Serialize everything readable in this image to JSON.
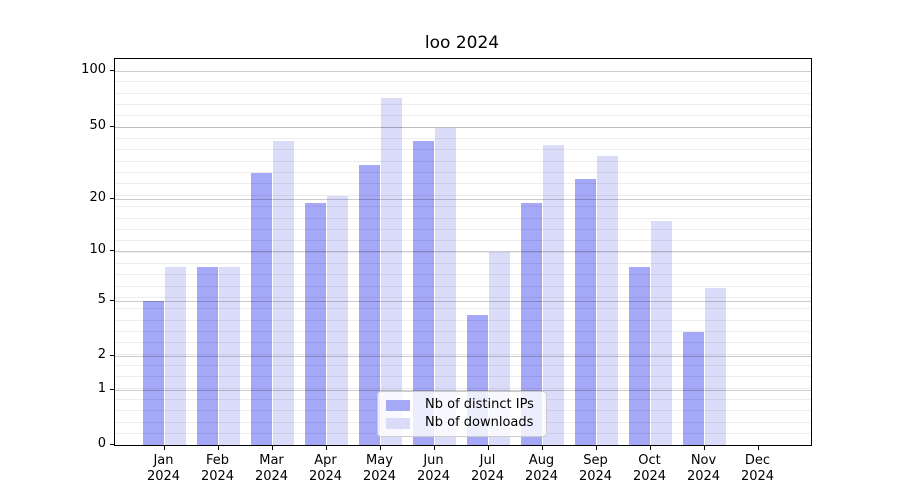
{
  "chart_data": {
    "type": "bar",
    "title": "loo 2024",
    "categories": [
      "Jan 2024",
      "Feb 2024",
      "Mar 2024",
      "Apr 2024",
      "May 2024",
      "Jun 2024",
      "Jul 2024",
      "Aug 2024",
      "Sep 2024",
      "Oct 2024",
      "Nov 2024",
      "Dec 2024"
    ],
    "series": [
      {
        "name": "Nb of distinct IPs",
        "color": "#a5a8f6",
        "values": [
          5,
          8,
          28,
          19,
          31,
          42,
          4,
          19,
          26,
          8,
          3,
          0
        ]
      },
      {
        "name": "Nb of downloads",
        "color": "#dadcfa",
        "values": [
          8,
          8,
          42,
          21,
          72,
          50,
          10,
          40,
          35,
          15,
          6,
          0
        ]
      }
    ],
    "xlabel": "",
    "ylabel": "",
    "yscale": "log-like with linear segment below 1",
    "yticks": [
      0,
      1,
      2,
      5,
      10,
      20,
      50,
      100
    ],
    "ylim": [
      0,
      115
    ],
    "grid": "horizontal major and minor gridlines drawn over bars",
    "legend_position": "lower center",
    "bar_group": "two bars per month, side by side, no gap"
  },
  "colors": {
    "ip_bar": "#a5a8f6",
    "download_bar": "#dadcfa",
    "major_grid": "rgba(0,0,0,0.20)",
    "minor_grid": "rgba(0,0,0,0.07)",
    "spine": "#000000",
    "legend_border": "#cccccc"
  }
}
